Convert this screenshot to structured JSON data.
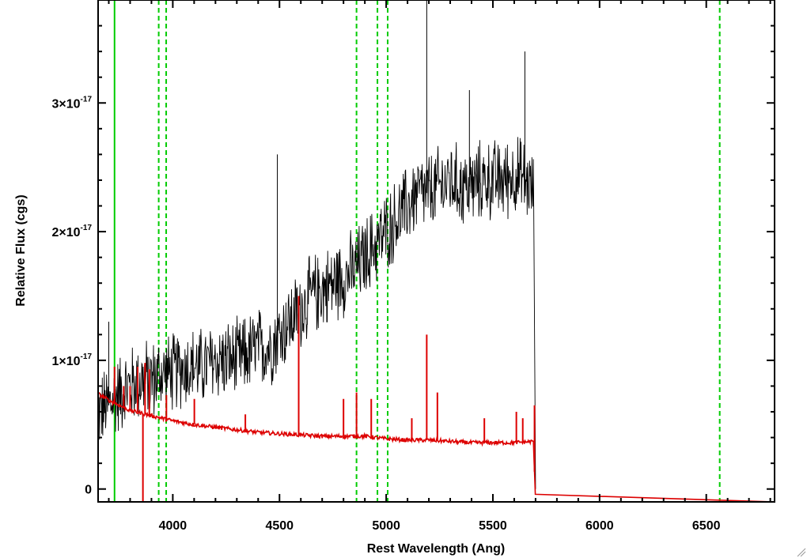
{
  "chart_data": {
    "type": "line",
    "title": "",
    "xlabel": "Rest Wavelength (Ang)",
    "ylabel": "Relative Flux (cgs)",
    "xlim": [
      3650,
      6820
    ],
    "ylim": [
      -1e-18,
      3.8e-17
    ],
    "grid": false,
    "x_ticks": [
      {
        "value": 4000,
        "label": "4000"
      },
      {
        "value": 4500,
        "label": "4500"
      },
      {
        "value": 5000,
        "label": "5000"
      },
      {
        "value": 5500,
        "label": "5500"
      },
      {
        "value": 6000,
        "label": "6000"
      },
      {
        "value": 6500,
        "label": "6500"
      }
    ],
    "y_ticks": [
      {
        "value": 0,
        "label": "0",
        "exp": ""
      },
      {
        "value": 1e-17,
        "label": "1×10",
        "exp": "-17"
      },
      {
        "value": 2e-17,
        "label": "2×10",
        "exp": "-17"
      },
      {
        "value": 3e-17,
        "label": "3×10",
        "exp": "-17"
      }
    ],
    "vertical_lines": [
      {
        "x": 3727,
        "color": "#00cc00",
        "style": "solid"
      },
      {
        "x": 3934,
        "color": "#00cc00",
        "style": "dashed"
      },
      {
        "x": 3969,
        "color": "#00cc00",
        "style": "dashed"
      },
      {
        "x": 4861,
        "color": "#00cc00",
        "style": "dashed"
      },
      {
        "x": 4959,
        "color": "#00cc00",
        "style": "dashed"
      },
      {
        "x": 5007,
        "color": "#00cc00",
        "style": "dashed"
      },
      {
        "x": 6563,
        "color": "#00cc00",
        "style": "dashed"
      }
    ],
    "series": [
      {
        "color": "#000000",
        "x": [
          3650,
          3700,
          3750,
          3800,
          3850,
          3900,
          3950,
          4000,
          4050,
          4100,
          4150,
          4200,
          4250,
          4300,
          4350,
          4400,
          4450,
          4500,
          4550,
          4600,
          4650,
          4700,
          4750,
          4800,
          4850,
          4900,
          4950,
          5000,
          5050,
          5100,
          5150,
          5200,
          5250,
          5300,
          5350,
          5400,
          5450,
          5500,
          5550,
          5600,
          5650,
          5690,
          5700
        ],
        "y": [
          6e-18,
          6.5e-18,
          7.5e-18,
          8e-18,
          8.5e-18,
          8.5e-18,
          9e-18,
          9e-18,
          9.5e-18,
          9.5e-18,
          9.5e-18,
          1e-17,
          1e-17,
          1e-17,
          1.05e-17,
          1.1e-17,
          1.1e-17,
          1.2e-17,
          1.3e-17,
          1.4e-17,
          1.5e-17,
          1.55e-17,
          1.6e-17,
          1.65e-17,
          1.7e-17,
          1.8e-17,
          1.9e-17,
          2e-17,
          2.1e-17,
          2.2e-17,
          2.3e-17,
          2.3e-17,
          2.35e-17,
          2.4e-17,
          2.35e-17,
          2.35e-17,
          2.4e-17,
          2.4e-17,
          2.4e-17,
          2.45e-17,
          2.4e-17,
          2.3e-17,
          0
        ],
        "noise": 3e-18,
        "spikes": [
          {
            "x": 3700,
            "y": 1.3e-17
          },
          {
            "x": 4490,
            "y": 2.6e-17
          },
          {
            "x": 5190,
            "y": 3.8e-17
          },
          {
            "x": 5390,
            "y": 3.1e-17
          },
          {
            "x": 5650,
            "y": 3.4e-17
          }
        ]
      },
      {
        "color": "#dd0000",
        "x": [
          3650,
          3700,
          3800,
          3900,
          4000,
          4100,
          4200,
          4300,
          4400,
          4500,
          4600,
          4700,
          4800,
          4900,
          5000,
          5100,
          5200,
          5300,
          5400,
          5500,
          5600,
          5690,
          5700,
          6820
        ],
        "y": [
          7.4e-18,
          6.9e-18,
          6.1e-18,
          5.7e-18,
          5.3e-18,
          5e-18,
          4.8e-18,
          4.6e-18,
          4.4e-18,
          4.3e-18,
          4.2e-18,
          4.1e-18,
          4.1e-18,
          4.1e-18,
          3.9e-18,
          3.8e-18,
          3.8e-18,
          3.7e-18,
          3.6e-18,
          3.6e-18,
          3.6e-18,
          3.7e-18,
          -1e-18,
          -1e-18
        ],
        "spikes": [
          {
            "x": 3727,
            "y": 9.5e-18
          },
          {
            "x": 3770,
            "y": 8e-18
          },
          {
            "x": 3800,
            "y": 8e-18
          },
          {
            "x": 3835,
            "y": 9.5e-18
          },
          {
            "x": 3860,
            "y": -1e-18
          },
          {
            "x": 3870,
            "y": 9.8e-18
          },
          {
            "x": 3890,
            "y": 9.3e-18
          },
          {
            "x": 3970,
            "y": 7.3e-18
          },
          {
            "x": 4101,
            "y": 7e-18
          },
          {
            "x": 4340,
            "y": 5.8e-18
          },
          {
            "x": 4590,
            "y": 1.5e-17
          },
          {
            "x": 4800,
            "y": 7e-18
          },
          {
            "x": 4861,
            "y": 7.5e-18
          },
          {
            "x": 4930,
            "y": 7e-18
          },
          {
            "x": 5120,
            "y": 5.5e-18
          },
          {
            "x": 5190,
            "y": 1.2e-17
          },
          {
            "x": 5240,
            "y": 7.5e-18
          },
          {
            "x": 5460,
            "y": 5.5e-18
          },
          {
            "x": 5610,
            "y": 6e-18
          },
          {
            "x": 5640,
            "y": 5.5e-18
          },
          {
            "x": 5695,
            "y": 6.5e-18
          }
        ]
      }
    ]
  }
}
